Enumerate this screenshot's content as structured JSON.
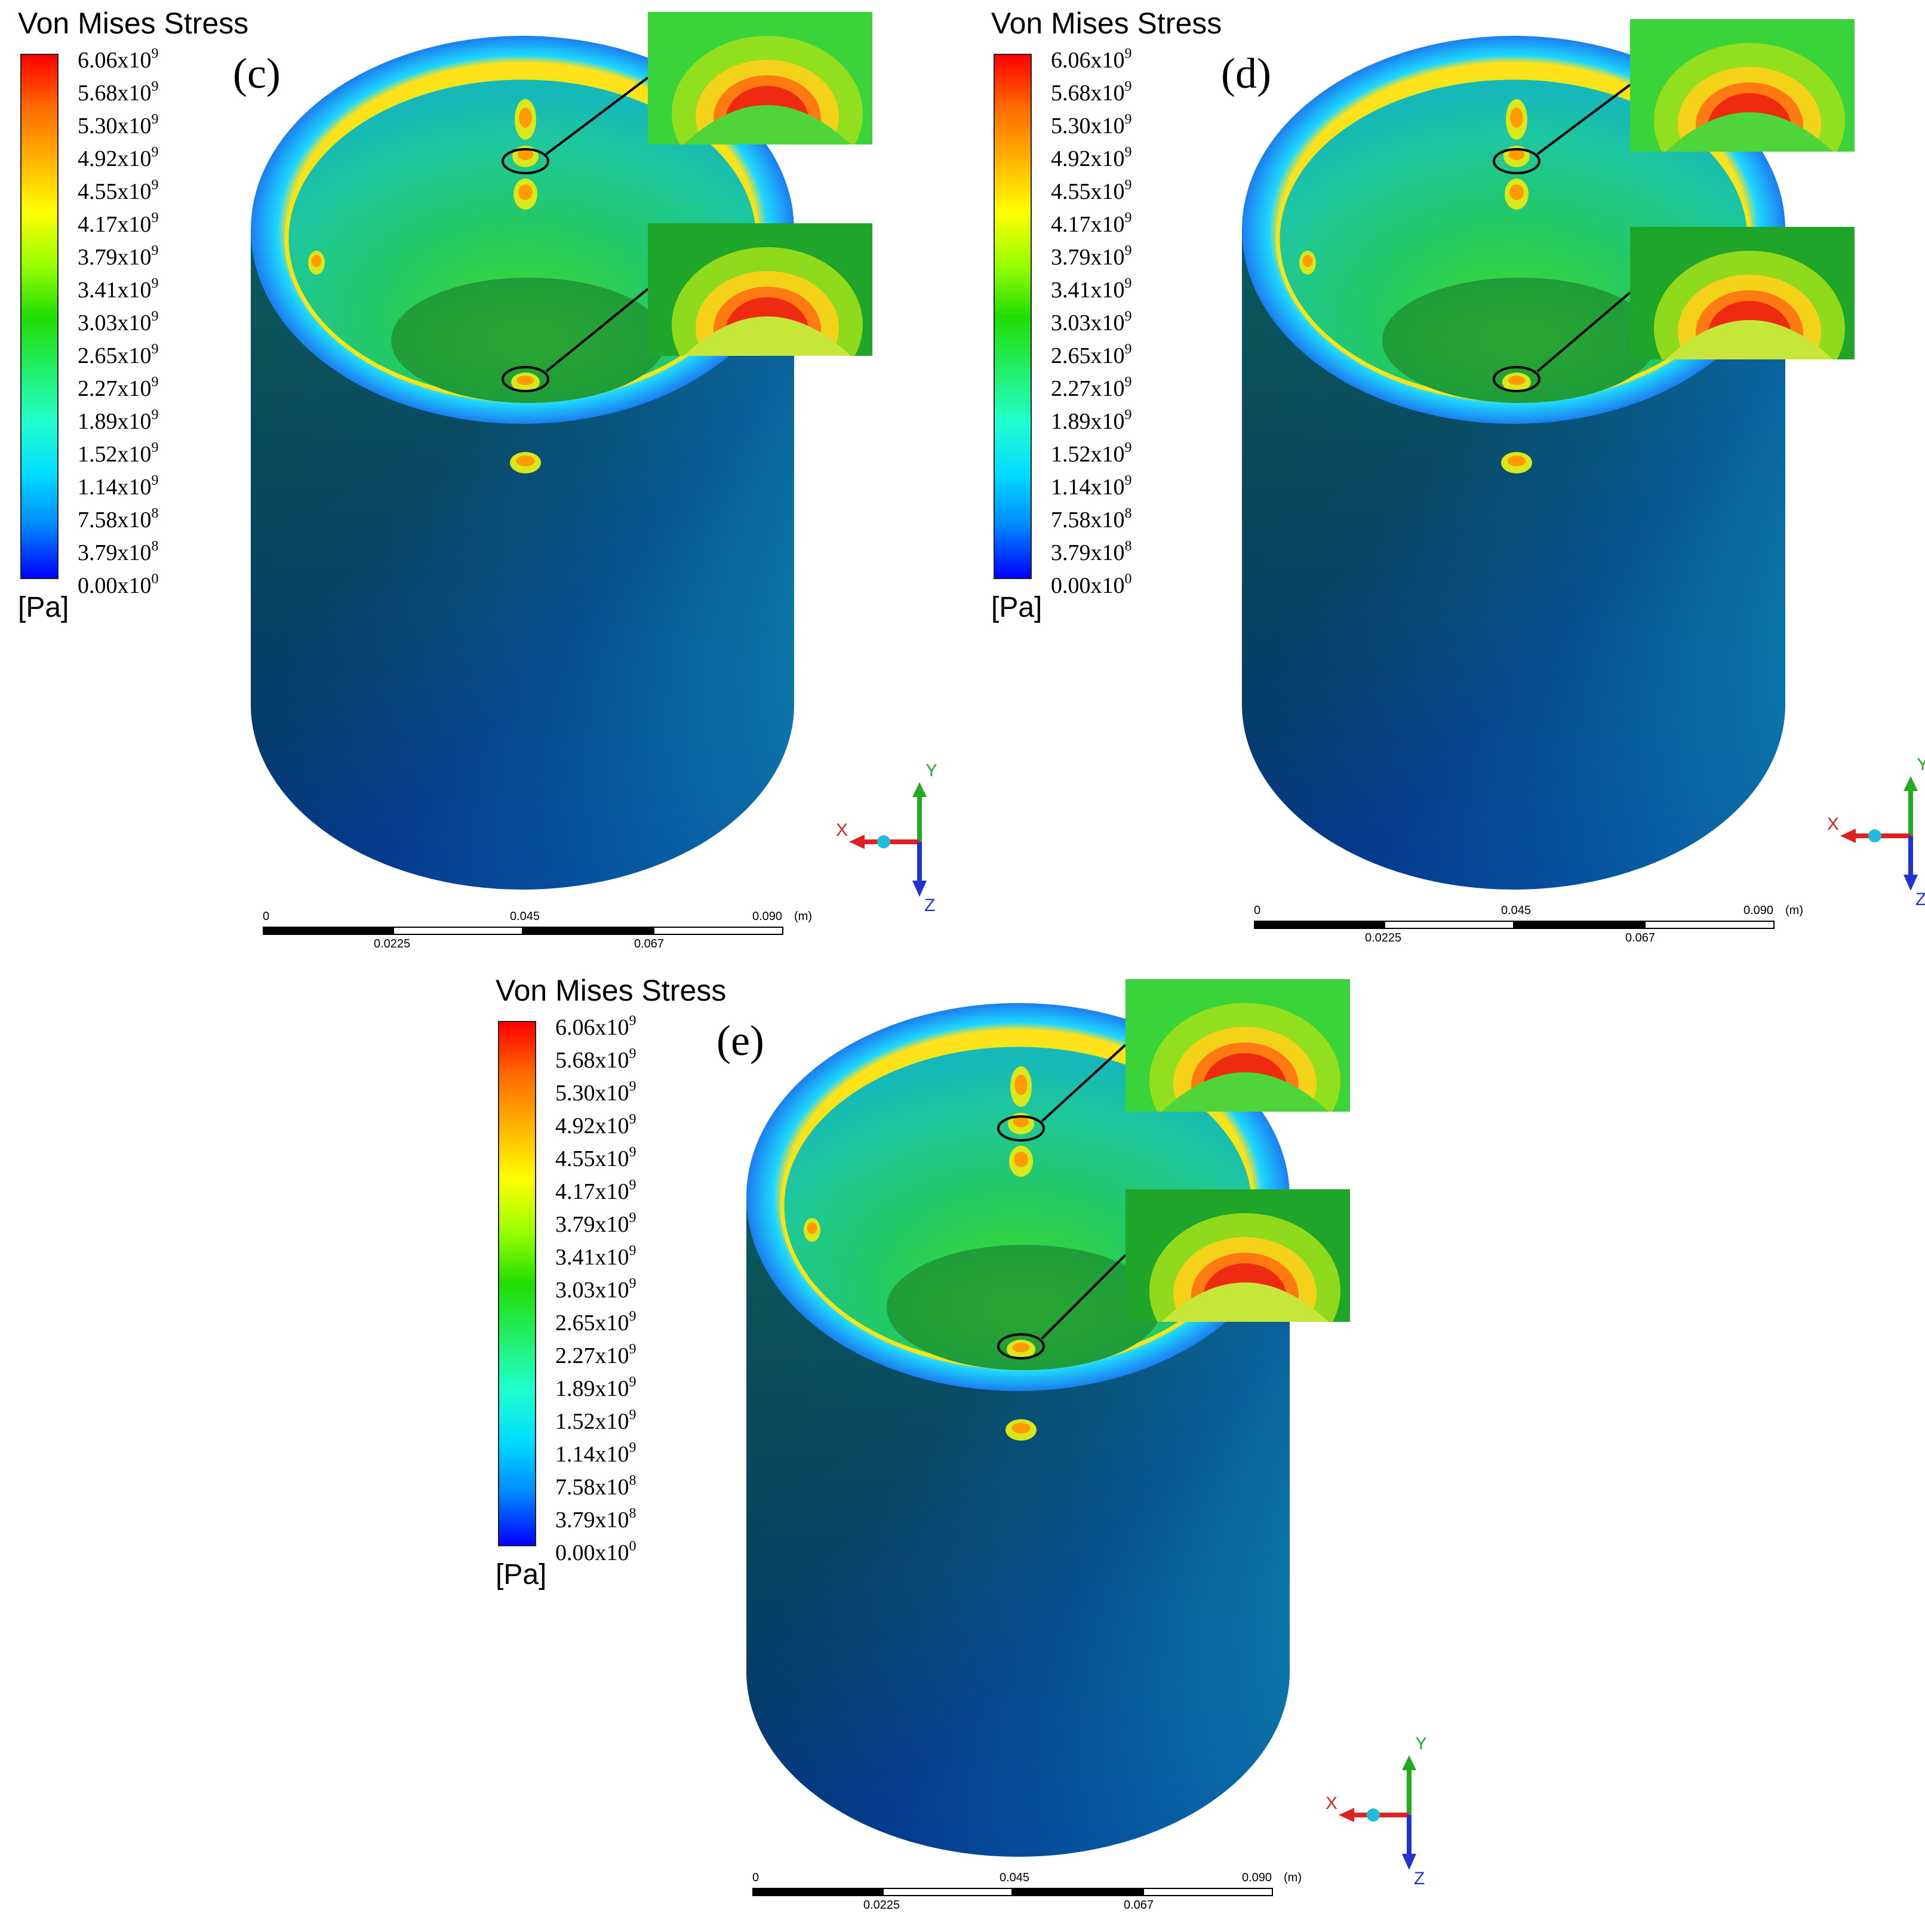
{
  "colors": {
    "stress_max": "#ff0000",
    "stress_mid": "#22dd00",
    "stress_min": "#0000ff",
    "x_axis": "#dd2222",
    "y_axis": "#22aa22",
    "z_axis": "#2233cc"
  },
  "legend": {
    "title": "Von Mises Stress",
    "unit": "[Pa]",
    "ticks": [
      {
        "mantissa": "6.06x10",
        "exp": "9"
      },
      {
        "mantissa": "5.68x10",
        "exp": "9"
      },
      {
        "mantissa": "5.30x10",
        "exp": "9"
      },
      {
        "mantissa": "4.92x10",
        "exp": "9"
      },
      {
        "mantissa": "4.55x10",
        "exp": "9"
      },
      {
        "mantissa": "4.17x10",
        "exp": "9"
      },
      {
        "mantissa": "3.79x10",
        "exp": "9"
      },
      {
        "mantissa": "3.41x10",
        "exp": "9"
      },
      {
        "mantissa": "3.03x10",
        "exp": "9"
      },
      {
        "mantissa": "2.65x10",
        "exp": "9"
      },
      {
        "mantissa": "2.27x10",
        "exp": "9"
      },
      {
        "mantissa": "1.89x10",
        "exp": "9"
      },
      {
        "mantissa": "1.52x10",
        "exp": "9"
      },
      {
        "mantissa": "1.14x10",
        "exp": "9"
      },
      {
        "mantissa": "7.58x10",
        "exp": "8"
      },
      {
        "mantissa": "3.79x10",
        "exp": "8"
      },
      {
        "mantissa": "0.00x10",
        "exp": "0"
      }
    ]
  },
  "panels": [
    {
      "tag": "(c)"
    },
    {
      "tag": "(d)"
    },
    {
      "tag": "(e)"
    }
  ],
  "scalebar": {
    "labels_top": [
      "0",
      "0.045",
      "0.090"
    ],
    "labels_bottom": [
      "0.0225",
      "0.067"
    ],
    "unit": "(m)"
  },
  "triad": {
    "x": "X",
    "y": "Y",
    "z": "Z"
  }
}
